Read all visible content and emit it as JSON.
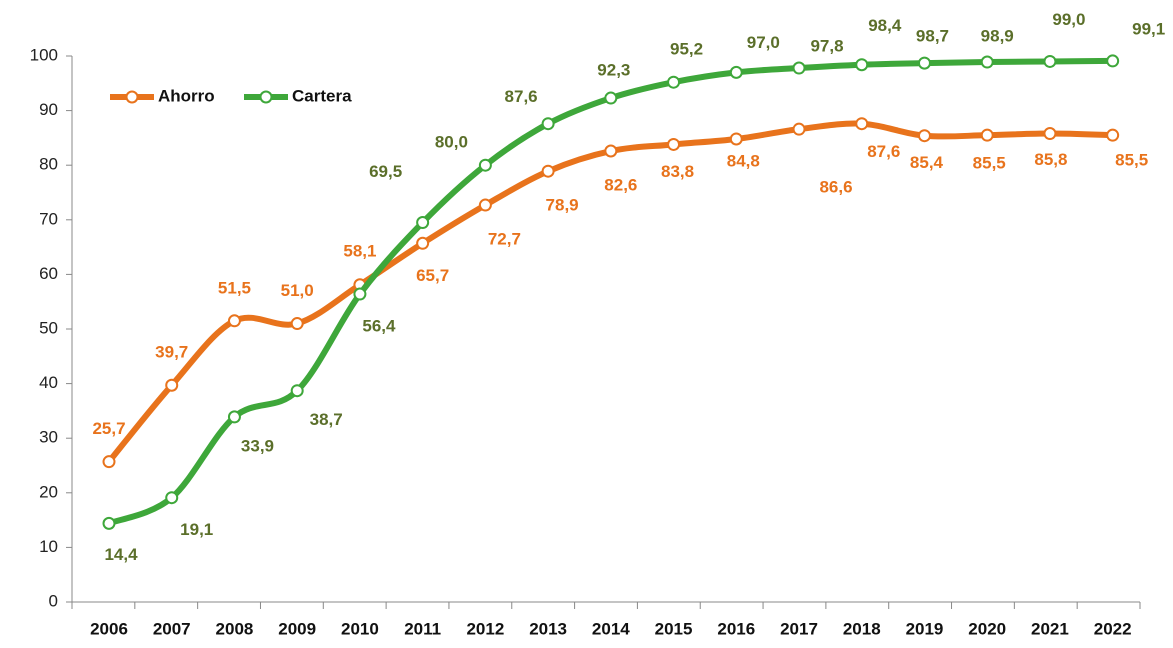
{
  "chart_data": {
    "type": "line",
    "categories": [
      "2006",
      "2007",
      "2008",
      "2009",
      "2010",
      "2011",
      "2012",
      "2013",
      "2014",
      "2015",
      "2016",
      "2017",
      "2018",
      "2019",
      "2020",
      "2021",
      "2022"
    ],
    "series": [
      {
        "name": "Ahorro",
        "color": "#e8731c",
        "label_color": "#e8731c",
        "values": [
          25.7,
          39.7,
          51.5,
          51.0,
          58.1,
          65.7,
          72.7,
          78.9,
          82.6,
          83.8,
          84.8,
          86.6,
          87.6,
          85.4,
          85.5,
          85.8,
          85.5
        ],
        "value_labels": [
          "25,7",
          "39,7",
          "51,5",
          "51,0",
          "58,1",
          "65,7",
          "72,7",
          "78,9",
          "82,6",
          "83,8",
          "84,8",
          "86,6",
          "87,6",
          "85,4",
          "85,5",
          "85,8",
          "85,5"
        ]
      },
      {
        "name": "Cartera",
        "color": "#3ea73a",
        "label_color": "#5b6f2a",
        "values": [
          14.4,
          19.1,
          33.9,
          38.7,
          56.4,
          69.5,
          80.0,
          87.6,
          92.3,
          95.2,
          97.0,
          97.8,
          98.4,
          98.7,
          98.9,
          99.0,
          99.1
        ],
        "value_labels": [
          "14,4",
          "19,1",
          "33,9",
          "38,7",
          "56,4",
          "69,5",
          "80,0",
          "87,6",
          "92,3",
          "95,2",
          "97,0",
          "97,8",
          "98,4",
          "98,7",
          "98,9",
          "99,0",
          "99,1"
        ]
      }
    ],
    "ylim": [
      0,
      100
    ],
    "yticks": [
      0,
      10,
      20,
      30,
      40,
      50,
      60,
      70,
      80,
      90,
      100
    ],
    "legend": "top-left"
  }
}
